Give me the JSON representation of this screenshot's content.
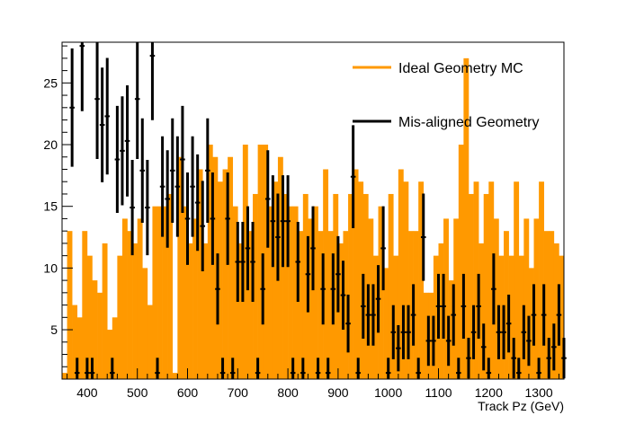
{
  "chart_data": {
    "type": "bar",
    "title": "",
    "xlabel": "Track Pz (GeV)",
    "ylabel": "",
    "xlim": [
      350,
      1350
    ],
    "ylim": [
      1.0,
      28.3
    ],
    "xticks": [
      400,
      500,
      600,
      700,
      800,
      900,
      1000,
      1100,
      1200,
      1300
    ],
    "yticks": [
      5,
      10,
      15,
      20,
      25
    ],
    "bin_width": 10,
    "grid": false,
    "legend": "top-right",
    "series": [
      {
        "name": "Ideal Geometry MC",
        "kind": "histogram",
        "color": "#ff9900",
        "bin_start": 350,
        "values": [
          1.5,
          13,
          7,
          6,
          13,
          11,
          9,
          8,
          12,
          5,
          6,
          11,
          14,
          13,
          12,
          14,
          10,
          7,
          15,
          15,
          15,
          16,
          1.5,
          19,
          15,
          12,
          14,
          18,
          12,
          20,
          19,
          17,
          18,
          19,
          15,
          12,
          20,
          13,
          16,
          20,
          20,
          15,
          17,
          19,
          16,
          15,
          15,
          13,
          16,
          14,
          15,
          13,
          18,
          13,
          16,
          12,
          13,
          16,
          18,
          17,
          16,
          14,
          11,
          15,
          10,
          16,
          11,
          18,
          17,
          13,
          13,
          17,
          8,
          8,
          11,
          12,
          14,
          9,
          14,
          20,
          27,
          16,
          17,
          12,
          16,
          17,
          14,
          11,
          13,
          11,
          17,
          11,
          14,
          10,
          14,
          17,
          13,
          13,
          12,
          11,
          10,
          14,
          13,
          11,
          12,
          12,
          10,
          13,
          11,
          10,
          11,
          9,
          9,
          8,
          7,
          8,
          8,
          8,
          7,
          7,
          7,
          7,
          11,
          7,
          8,
          5,
          7,
          8,
          5,
          6,
          8,
          7,
          7,
          7,
          6,
          8,
          6,
          7,
          6,
          6,
          8,
          6,
          4,
          5,
          6,
          4,
          8,
          4,
          6,
          7
        ]
      },
      {
        "name": "Mis-aligned Geometry",
        "kind": "errorbar",
        "color": "#000000",
        "bin_start": 370,
        "values": [
          23,
          1.5,
          28,
          1.5,
          1.5,
          23.7,
          21.6,
          22.3,
          1.5,
          18.8,
          19.5,
          20.3,
          14.9,
          23.7,
          17.9,
          14.9,
          27.2,
          1.5,
          16.6,
          15.6,
          17.9,
          16.6,
          18.8,
          14,
          16.6,
          15.3,
          13.4,
          17.9,
          14,
          8.3,
          1.5,
          14,
          1.5,
          10.5,
          10.5,
          11.6,
          10.5,
          1.5,
          8.3,
          15.6,
          13.8,
          12.5,
          13.8,
          13.8,
          1.5,
          10.5,
          1.5,
          9.5,
          11.6,
          1.5,
          8.3,
          1.5,
          8.3,
          9.5,
          7.8,
          5.5,
          17.4,
          1.5,
          6.9,
          6.2,
          6.2,
          7.5,
          11.6,
          1.5,
          4.8,
          3.5,
          4.8,
          4.8,
          6.2,
          1.5,
          12.5,
          4.1,
          4.1,
          6.9,
          6.9,
          4.1,
          6.2,
          1.5,
          6.9,
          2.7,
          4.8,
          6.9,
          3.6,
          1.5,
          8.3,
          4.8,
          4.8,
          5.5,
          2.7,
          1.5,
          4.8,
          4.1,
          6.2,
          1.5,
          6.2,
          2.7,
          3.6,
          6.2,
          2.7,
          4.1,
          2.7,
          3.6,
          4.8,
          2.7,
          1.5,
          2.2,
          3.6,
          1.5,
          4.8,
          2.7
        ]
      }
    ]
  }
}
